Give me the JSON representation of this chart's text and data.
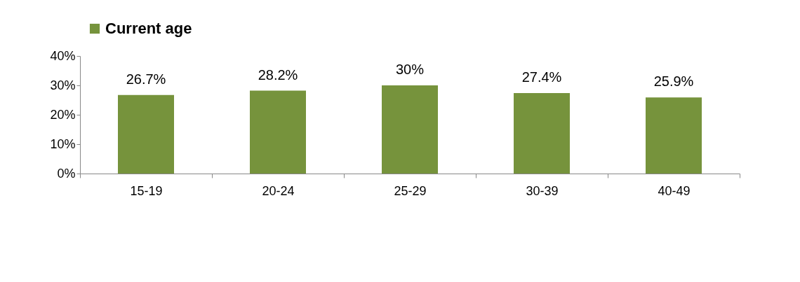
{
  "chart_data": {
    "type": "bar",
    "categories": [
      "15-19",
      "20-24",
      "25-29",
      "30-39",
      "40-49"
    ],
    "series": [
      {
        "name": "Current age",
        "color": "#76933c",
        "values": [
          26.7,
          28.2,
          30,
          27.4,
          25.9
        ],
        "value_labels": [
          "26.7%",
          "28.2%",
          "30%",
          "27.4%",
          "25.9%"
        ]
      }
    ],
    "ylim": [
      0,
      40
    ],
    "yticks": [
      {
        "value": 0,
        "label": "0%"
      },
      {
        "value": 10,
        "label": "10%"
      },
      {
        "value": 20,
        "label": "20%"
      },
      {
        "value": 30,
        "label": "30%"
      },
      {
        "value": 40,
        "label": "40%"
      }
    ],
    "legend": "top"
  }
}
